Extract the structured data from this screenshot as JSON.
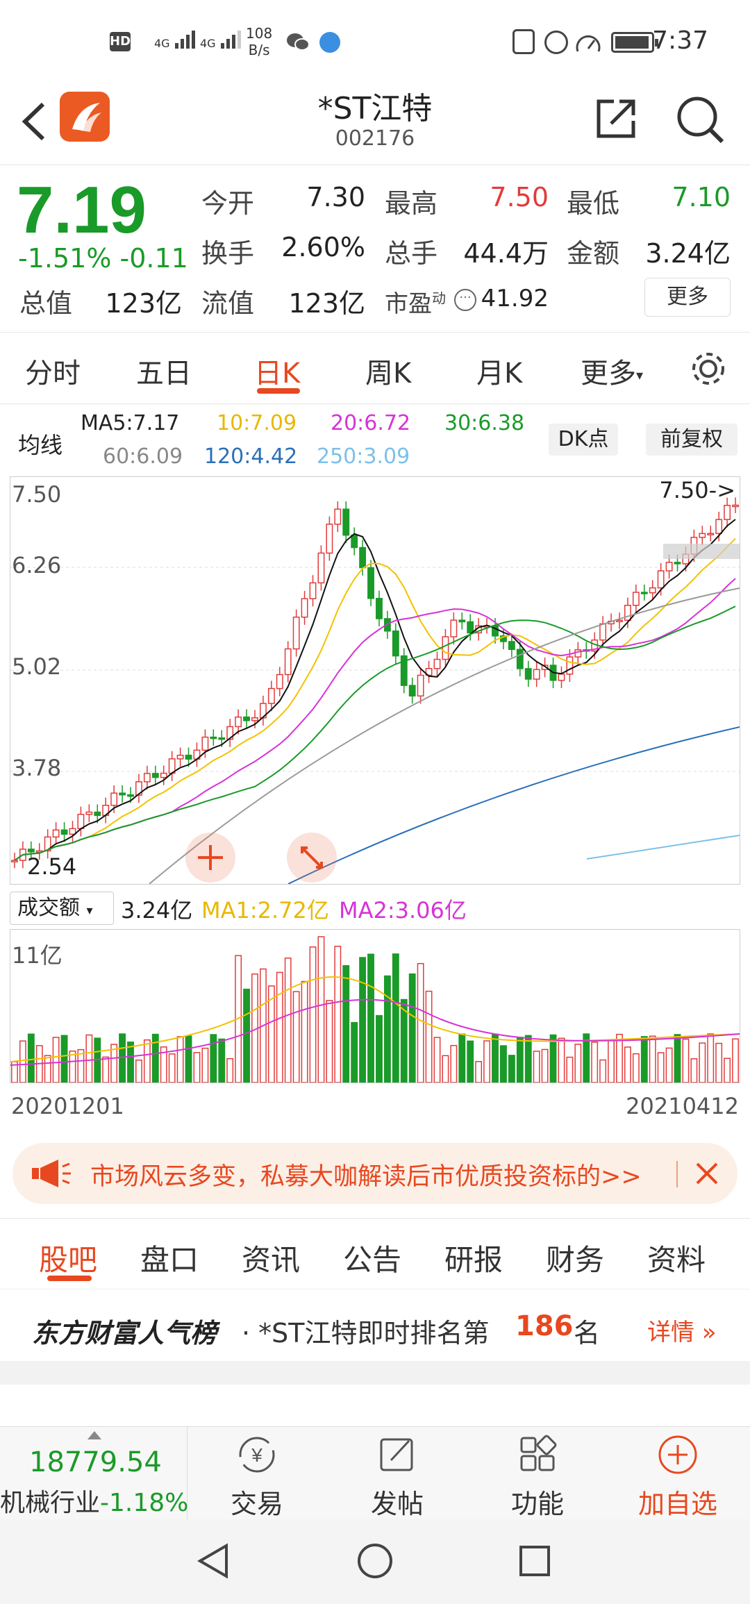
{
  "status_bar": {
    "time": "7:37",
    "speed_value": "108",
    "speed_unit": "B/s",
    "network1": "4G",
    "network2": "4G",
    "hd": "HD"
  },
  "header": {
    "stock_name": "*ST江特",
    "stock_code": "002176"
  },
  "quote": {
    "price": "7.19",
    "change": "-1.51% -0.11",
    "open_label": "今开",
    "open_value": "7.30",
    "high_label": "最高",
    "high_value": "7.50",
    "low_label": "最低",
    "low_value": "7.10",
    "turnover_label": "换手",
    "turnover_value": "2.60%",
    "volume_label": "总手",
    "volume_value": "44.4万",
    "amount_label": "金额",
    "amount_value": "3.24亿",
    "mktcap_label": "总值",
    "mktcap_value": "123亿",
    "float_label": "流值",
    "float_value": "123亿",
    "pe_label": "市盈",
    "pe_sup": "动",
    "pe_value": "41.92",
    "more_label": "更多"
  },
  "period_tabs": [
    "分时",
    "五日",
    "日K",
    "周K",
    "月K",
    "更多"
  ],
  "active_period": "日K",
  "ma_legend": {
    "label": "均线",
    "ma5": "MA5:7.17",
    "ma10": "10:7.09",
    "ma20": "20:6.72",
    "ma30": "30:6.38",
    "ma60": "60:6.09",
    "ma120": "120:4.42",
    "ma250": "250:3.09",
    "dk_button": "DK点",
    "adjust_button": "前复权"
  },
  "colors": {
    "up": "#e23b3b",
    "down": "#1a9a28",
    "accent": "#e8481f",
    "ma5": "#111111",
    "ma10": "#f2c200",
    "ma20": "#d633d6",
    "ma30": "#1a9a28",
    "ma60": "#9a9a9a",
    "ma120": "#2a6fb8",
    "ma250": "#7cc0e8"
  },
  "chart_data": [
    {
      "type": "candlestick",
      "y_axis_ticks": [
        "7.50",
        "6.26",
        "5.02",
        "3.78"
      ],
      "high_marker": "7.50->",
      "low_marker": "2.54",
      "ylim": [
        2.54,
        7.5
      ],
      "x_start": "20201201",
      "x_end": "20210412"
    },
    {
      "type": "bar",
      "title": "成交额",
      "value": "3.24亿",
      "ma1": "MA1:2.72亿",
      "ma2": "MA2:3.06亿",
      "y_max_label": "11亿"
    }
  ],
  "ad_banner": {
    "text": "市场风云多变，私募大咖解读后市优质投资标的>>"
  },
  "section_tabs": [
    "股吧",
    "盘口",
    "资讯",
    "公告",
    "研报",
    "财务",
    "资料"
  ],
  "active_section": "股吧",
  "ranking": {
    "brand": "东方财富人气榜",
    "prefix": "· *ST江特即时排名第",
    "rank": "186",
    "suffix": "名",
    "detail": "详情"
  },
  "bottom_bar": {
    "index_value": "18779.54",
    "index_name": "机械行业",
    "index_change": "-1.18%",
    "trade": "交易",
    "post": "发帖",
    "functions": "功能",
    "add_watch": "加自选"
  }
}
